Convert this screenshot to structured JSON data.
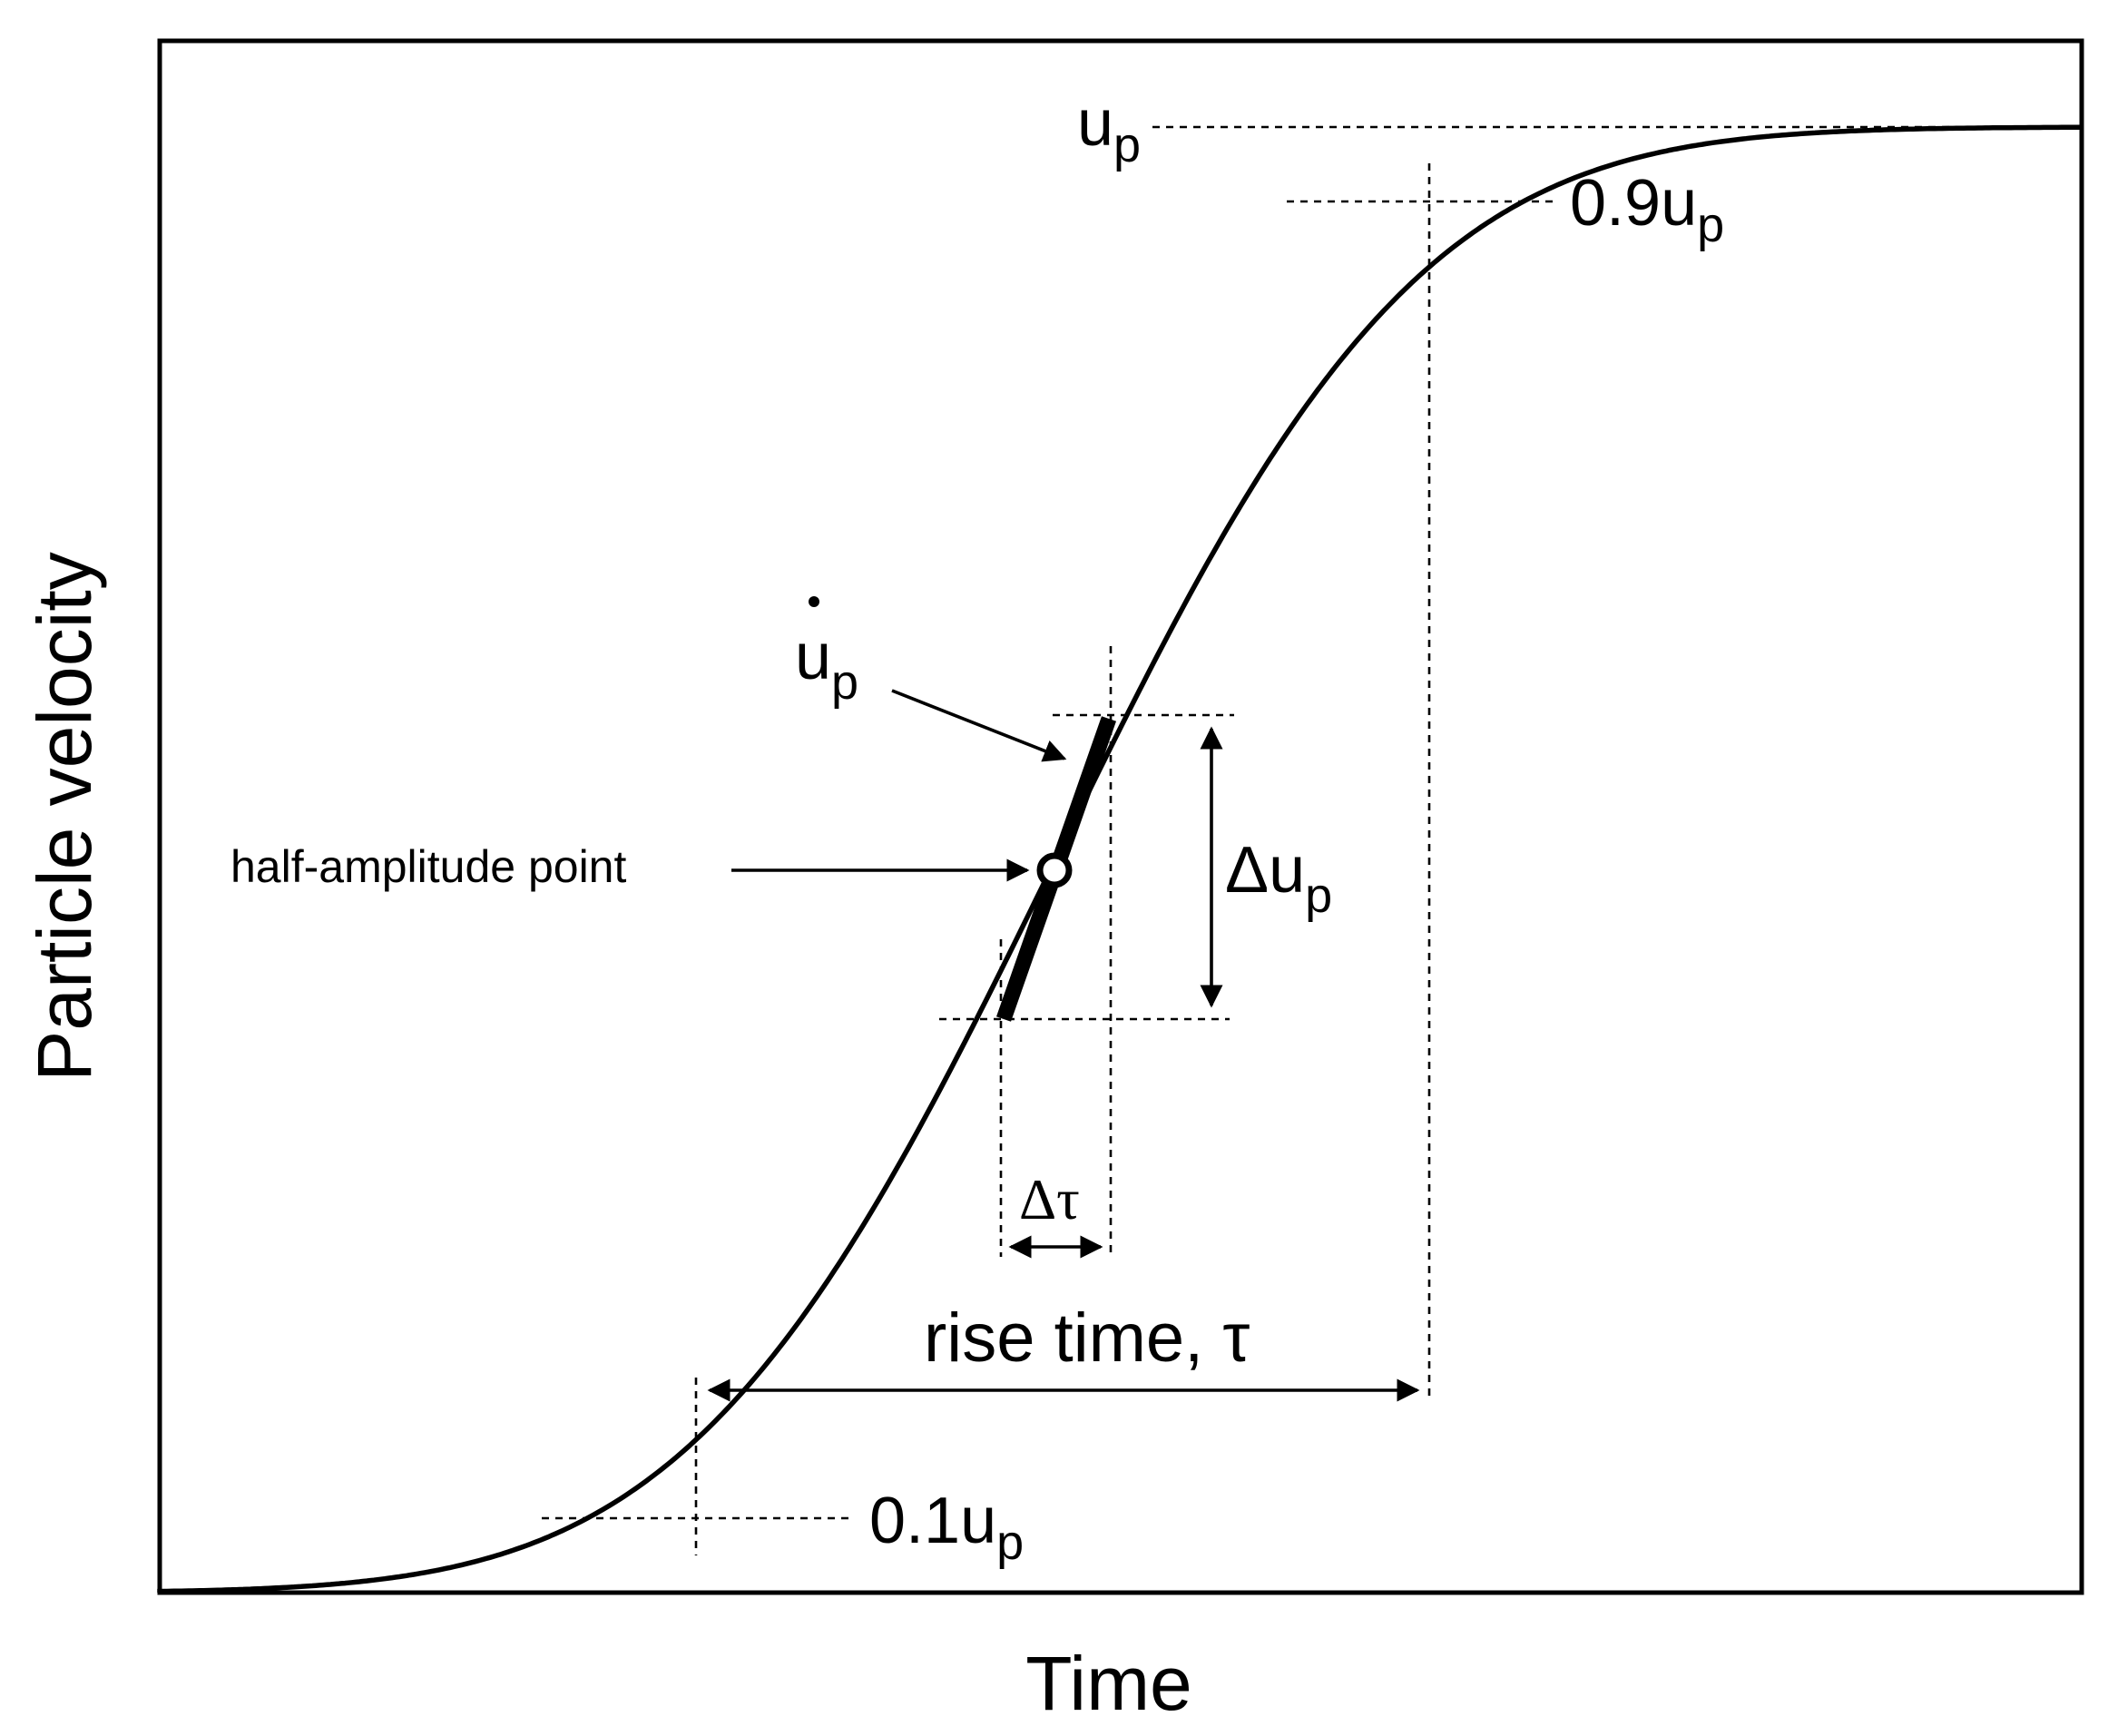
{
  "axes": {
    "y_label": "Particle velocity",
    "x_label": "Time"
  },
  "labels": {
    "up_main": "u",
    "up_sub": "p",
    "up90_main": "0.9u",
    "up90_sub": "p",
    "up10_main": "0.1u",
    "up10_sub": "p",
    "updot_main": "u",
    "updot_sub": "p",
    "delta_up_main": "Δu",
    "delta_up_sub": "p",
    "delta_tau": "Δτ",
    "rise_time": "rise time, τ",
    "half_amplitude": "half-amplitude point"
  },
  "colors": {
    "ink": "#000000",
    "background": "#ffffff"
  }
}
